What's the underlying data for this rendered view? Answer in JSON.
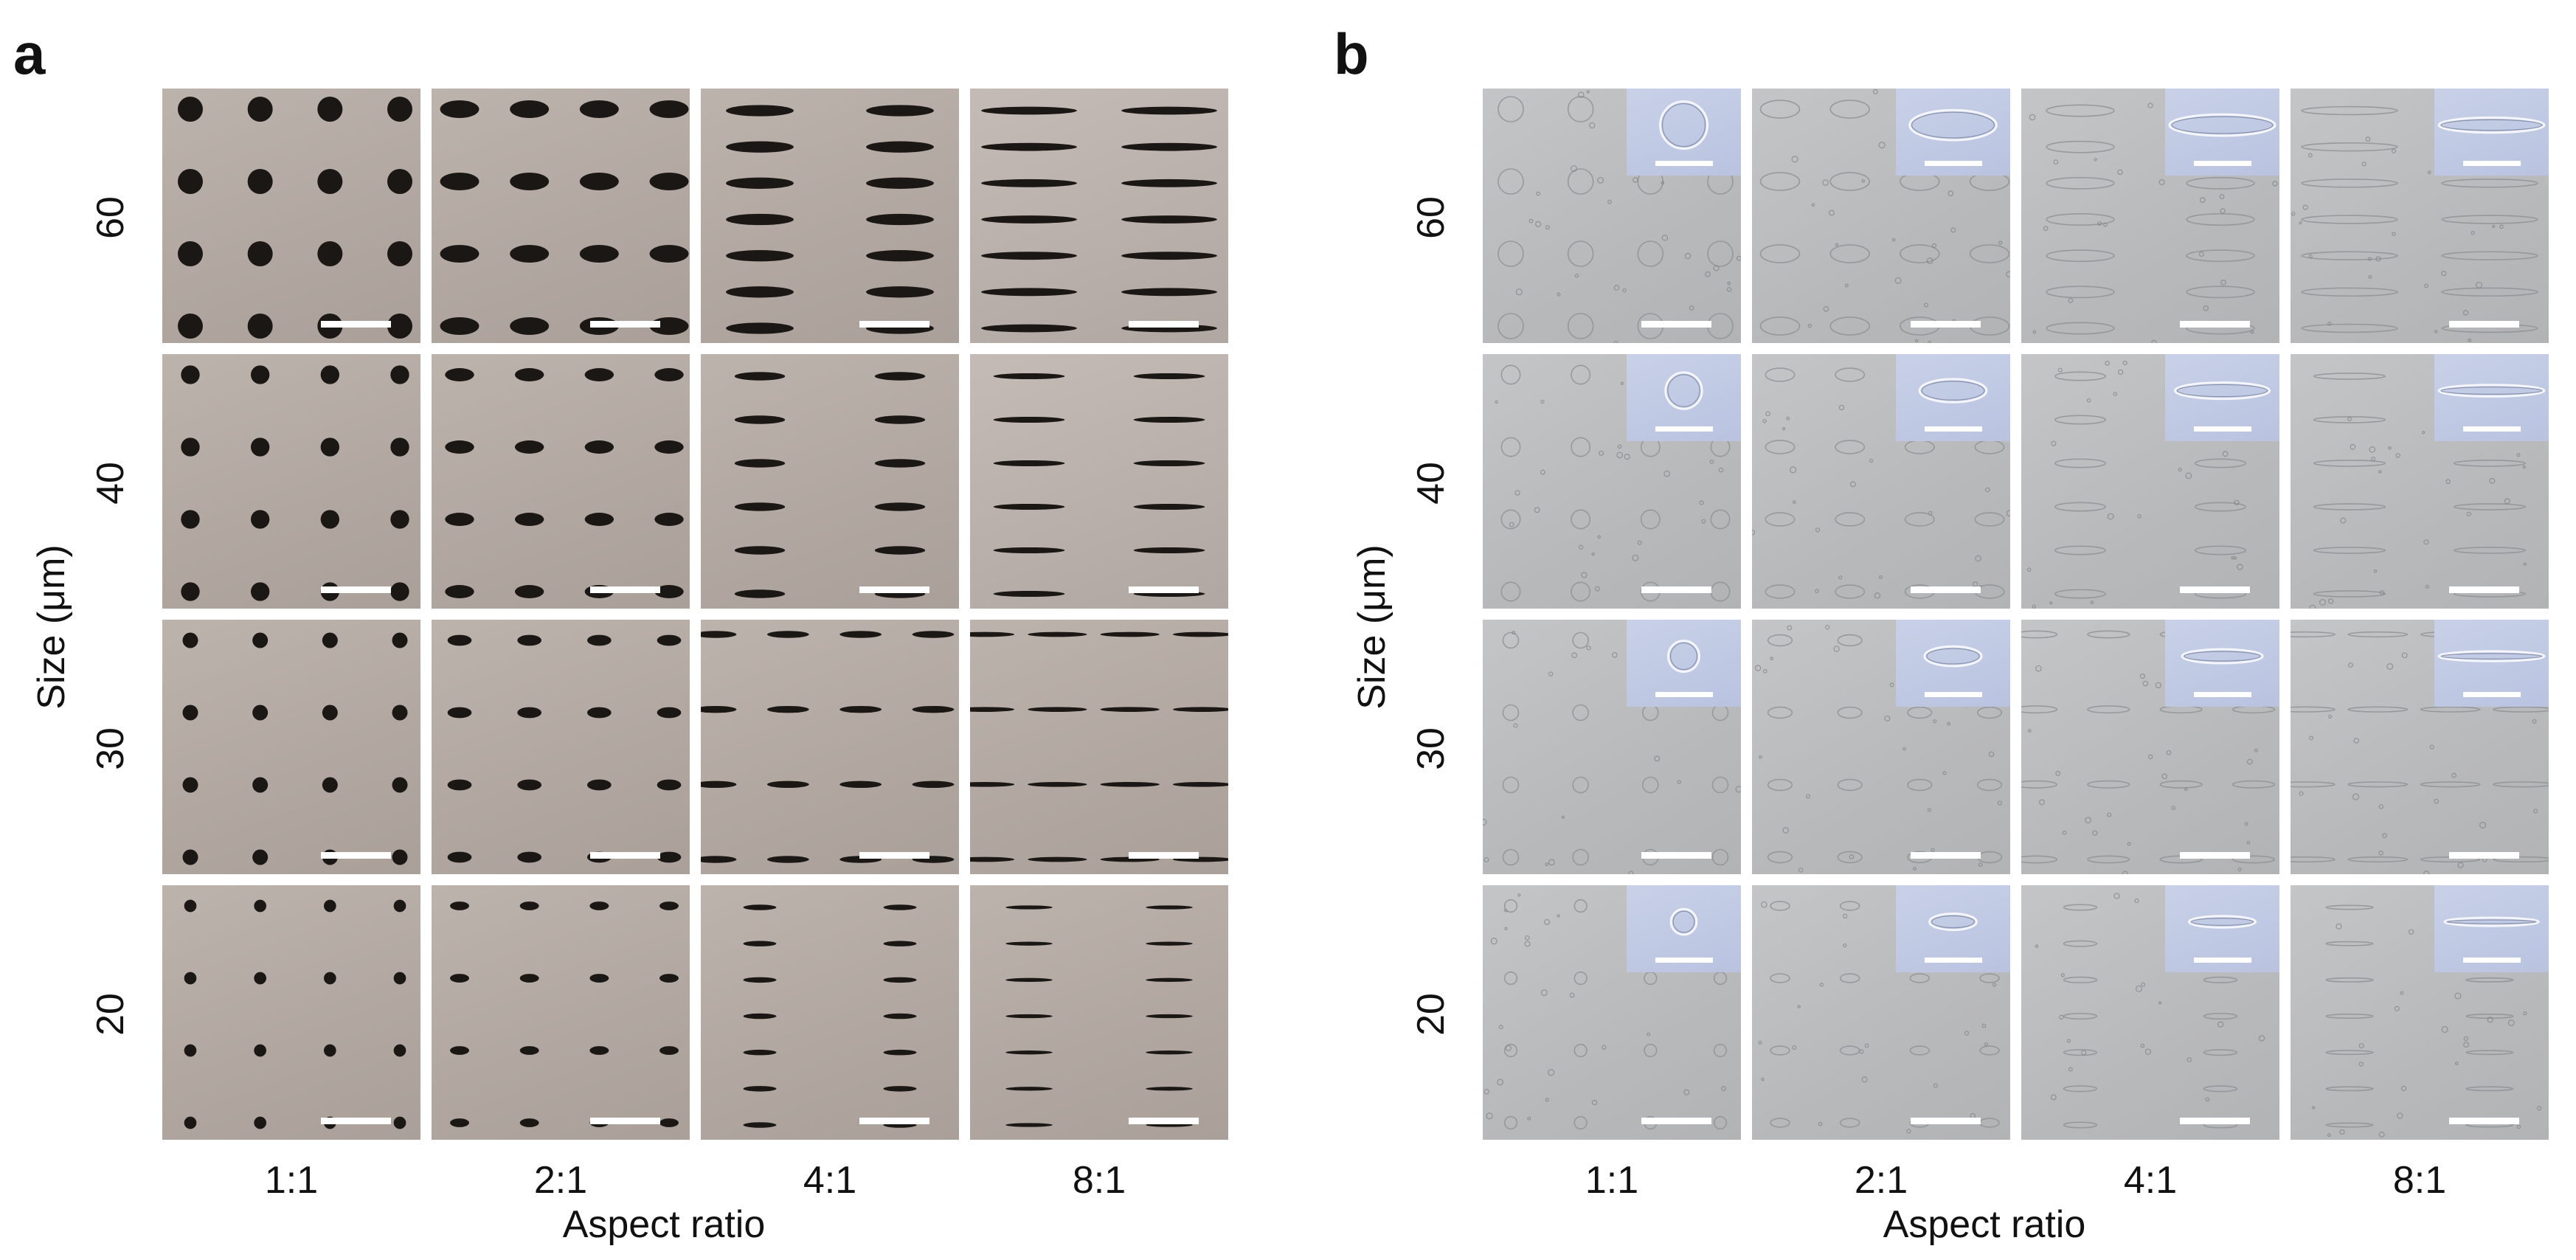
{
  "panels": [
    {
      "id": "a",
      "letter": "a",
      "ylabel": "Size (μm)",
      "xlabel": "Aspect ratio",
      "rows": [
        "60",
        "40",
        "30",
        "20"
      ],
      "cols": [
        "1:1",
        "2:1",
        "4:1",
        "8:1"
      ],
      "style": "optical-mask"
    },
    {
      "id": "b",
      "letter": "b",
      "ylabel": "Size (μm)",
      "xlabel": "Aspect ratio",
      "rows": [
        "60",
        "40",
        "30",
        "20"
      ],
      "cols": [
        "1:1",
        "2:1",
        "4:1",
        "8:1"
      ],
      "style": "micrograph-with-inset"
    }
  ],
  "colors": {
    "dot": "#1b1715",
    "scalebar": "#ffffff",
    "inset_tint": "#c0c9e4",
    "micrograph_bg": "#bcbdbf",
    "mask_bg": "#b5aaa4"
  }
}
